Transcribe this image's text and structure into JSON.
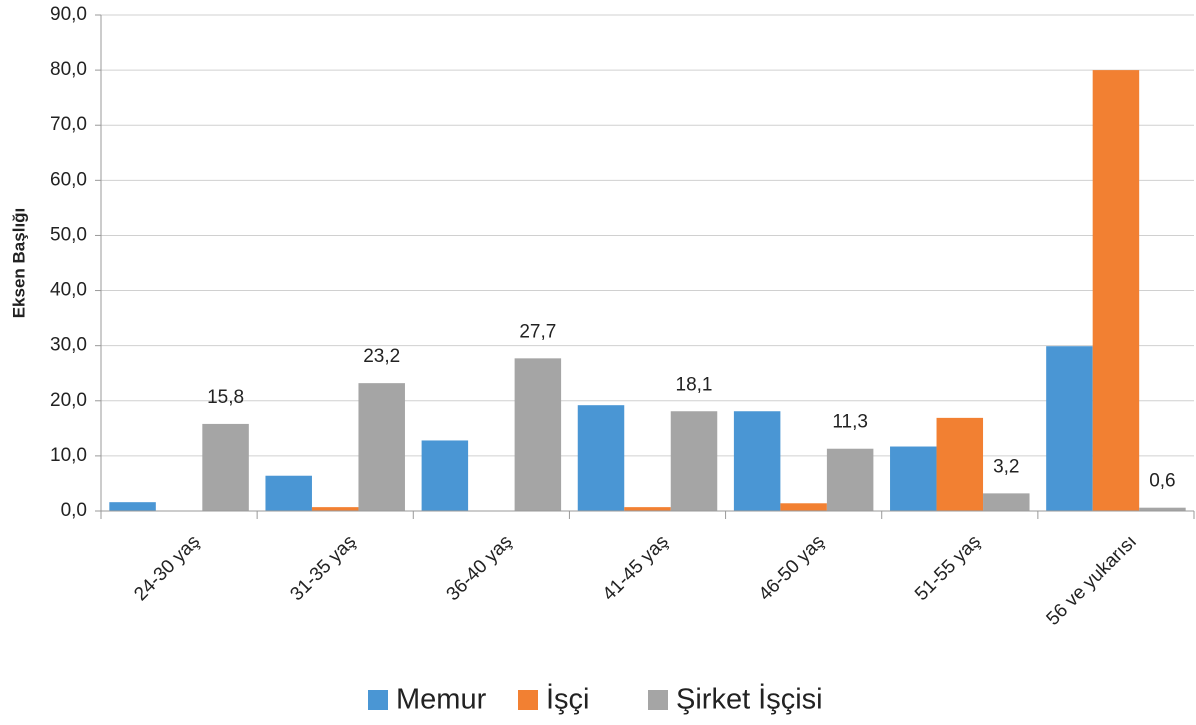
{
  "chart_data": {
    "type": "bar",
    "y_label": "Eksen Başlığı",
    "categories": [
      "24-30 yaş",
      "31-35 yaş",
      "36-40 yaş",
      "41-45 yaş",
      "46-50 yaş",
      "51-55 yaş",
      "56 ve yukarısı"
    ],
    "series": [
      {
        "name": "Memur",
        "color": "#4a96d4",
        "values": [
          1.6,
          6.4,
          12.8,
          19.2,
          18.1,
          11.7,
          29.9
        ]
      },
      {
        "name": "İşçi",
        "color": "#f28032",
        "values": [
          0,
          0.7,
          0,
          0.7,
          1.4,
          16.9,
          80.0
        ]
      },
      {
        "name": "Şirket İşçisi",
        "color": "#a5a5a5",
        "values": [
          15.8,
          23.2,
          27.7,
          18.1,
          11.3,
          3.2,
          0.6
        ],
        "value_labels": [
          "15,8",
          "23,2",
          "27,7",
          "18,1",
          "11,3",
          "3,2",
          "0,6"
        ]
      }
    ],
    "ylim": [
      0,
      90
    ],
    "yticks": [
      {
        "value": 0,
        "label": "0,0"
      },
      {
        "value": 10,
        "label": "10,0"
      },
      {
        "value": 20,
        "label": "20,0"
      },
      {
        "value": 30,
        "label": "30,0"
      },
      {
        "value": 40,
        "label": "40,0"
      },
      {
        "value": 50,
        "label": "50,0"
      },
      {
        "value": 60,
        "label": "60,0"
      },
      {
        "value": 70,
        "label": "70,0"
      },
      {
        "value": 80,
        "label": "80,0"
      },
      {
        "value": 90,
        "label": "90,0"
      }
    ],
    "grid": true,
    "legend": "bottom"
  }
}
